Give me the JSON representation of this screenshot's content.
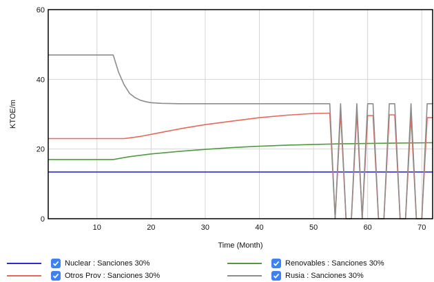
{
  "chart_data": {
    "type": "line",
    "title": "",
    "xlabel": "Time (Month)",
    "ylabel": "KTOE/m",
    "xlim": [
      1,
      72
    ],
    "ylim": [
      0,
      60
    ],
    "xticks": [
      10,
      20,
      30,
      40,
      50,
      60,
      70
    ],
    "yticks": [
      0,
      20,
      40,
      60
    ],
    "grid": true,
    "legend_position": "bottom",
    "series": [
      {
        "name": "Nuclear : Sanciones 30%",
        "color": "#2b2bd6",
        "x": [
          1,
          72
        ],
        "y": [
          13.4,
          13.4
        ]
      },
      {
        "name": "Renovables : Sanciones 30%",
        "color": "#4f9a3f",
        "x": [
          1,
          13,
          16,
          20,
          25,
          30,
          35,
          40,
          45,
          50,
          55,
          60,
          65,
          72
        ],
        "y": [
          17,
          17,
          17.8,
          18.6,
          19.3,
          19.9,
          20.4,
          20.8,
          21.1,
          21.3,
          21.5,
          21.6,
          21.7,
          21.8
        ]
      },
      {
        "name": "Otros Prov : Sanciones 30%",
        "color": "#e8665a",
        "x": [
          1,
          15,
          18,
          22,
          26,
          30,
          35,
          40,
          45,
          50,
          53,
          54,
          55,
          56,
          57,
          58,
          59,
          60,
          61,
          62,
          63,
          64,
          65,
          66,
          67,
          68,
          69,
          70,
          71,
          72
        ],
        "y": [
          23,
          23,
          23.6,
          24.8,
          26,
          27,
          28,
          29,
          29.7,
          30.2,
          30.3,
          0,
          30.6,
          0,
          0,
          30.5,
          0,
          29.6,
          29.6,
          0,
          0,
          29.8,
          29.8,
          0,
          0,
          29.5,
          0,
          0,
          29,
          29
        ]
      },
      {
        "name": "Rusia : Sanciones 30%",
        "color": "#8c8c8c",
        "x": [
          1,
          13,
          14,
          15,
          16,
          17,
          18,
          19,
          20,
          22,
          25,
          30,
          35,
          40,
          45,
          50,
          53,
          54,
          55,
          56,
          57,
          58,
          59,
          60,
          61,
          62,
          63,
          64,
          65,
          66,
          67,
          68,
          69,
          70,
          71,
          72
        ],
        "y": [
          47,
          47,
          42,
          38.5,
          36,
          34.8,
          34,
          33.6,
          33.3,
          33.1,
          33,
          33,
          33,
          33,
          33,
          33,
          33,
          0,
          33,
          0,
          0,
          33,
          0,
          33,
          33,
          0,
          0,
          33,
          33,
          0,
          0,
          33,
          0,
          0,
          33,
          33
        ]
      }
    ]
  },
  "legend": {
    "items": [
      {
        "label": "Nuclear : Sanciones 30%",
        "color": "#2b2bd6"
      },
      {
        "label": "Renovables : Sanciones 30%",
        "color": "#4f9a3f"
      },
      {
        "label": "Otros Prov : Sanciones 30%",
        "color": "#e8665a"
      },
      {
        "label": "Rusia : Sanciones 30%",
        "color": "#8c8c8c"
      }
    ]
  }
}
